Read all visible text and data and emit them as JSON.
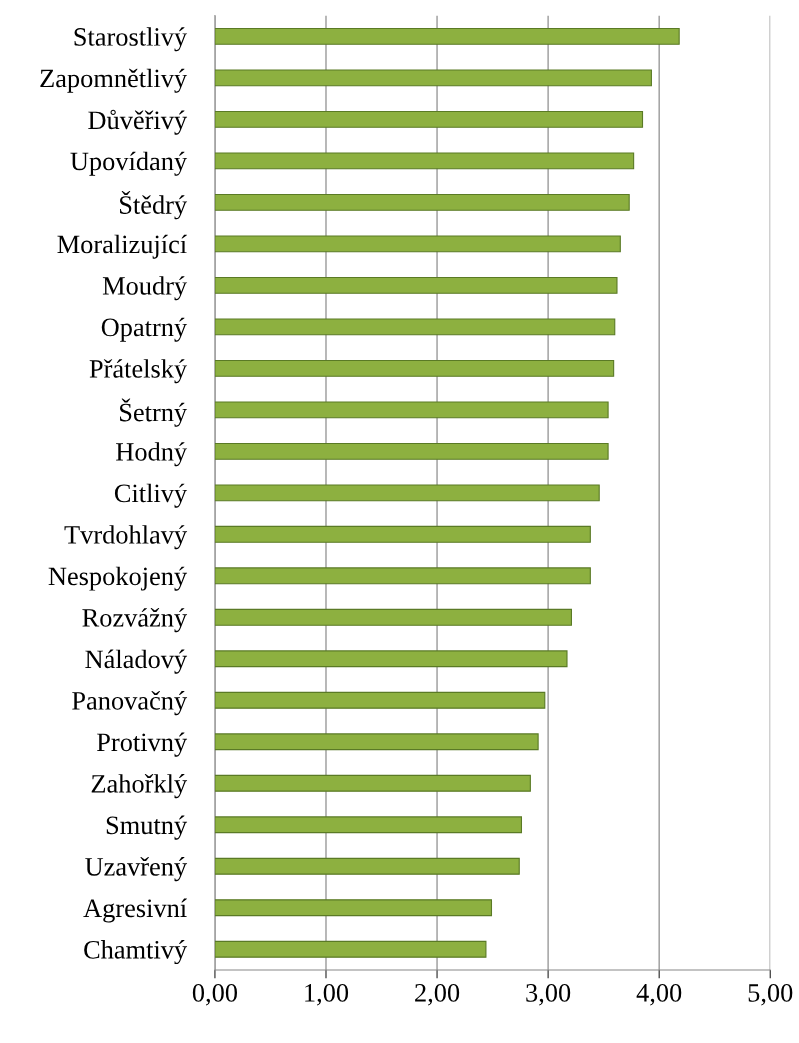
{
  "chart_data": {
    "type": "bar",
    "orientation": "horizontal",
    "categories": [
      "Starostlivý",
      "Zapomnětlivý",
      "Důvěřivý",
      "Upovídaný",
      "Štědrý",
      "Moralizující",
      "Moudrý",
      "Opatrný",
      "Přátelský",
      "Šetrný",
      "Hodný",
      "Citlivý",
      "Tvrdohlavý",
      "Nespokojený",
      "Rozvážný",
      "Náladový",
      "Panovačný",
      "Protivný",
      "Zahořklý",
      "Smutný",
      "Uzavřený",
      "Agresivní",
      "Chamtivý"
    ],
    "values": [
      4.18,
      3.93,
      3.85,
      3.77,
      3.73,
      3.65,
      3.62,
      3.6,
      3.59,
      3.54,
      3.54,
      3.46,
      3.38,
      3.38,
      3.21,
      3.17,
      2.97,
      2.91,
      2.84,
      2.76,
      2.74,
      2.49,
      2.44
    ],
    "color": "#8db040",
    "xlim": [
      0,
      5
    ],
    "xticks": [
      {
        "value": 0,
        "label": "0,00"
      },
      {
        "value": 1,
        "label": "1,00"
      },
      {
        "value": 2,
        "label": "2,00"
      },
      {
        "value": 3,
        "label": "3,00"
      },
      {
        "value": 4,
        "label": "4,00"
      },
      {
        "value": 5,
        "label": "5,00"
      }
    ],
    "grid": "x",
    "legend": false
  }
}
